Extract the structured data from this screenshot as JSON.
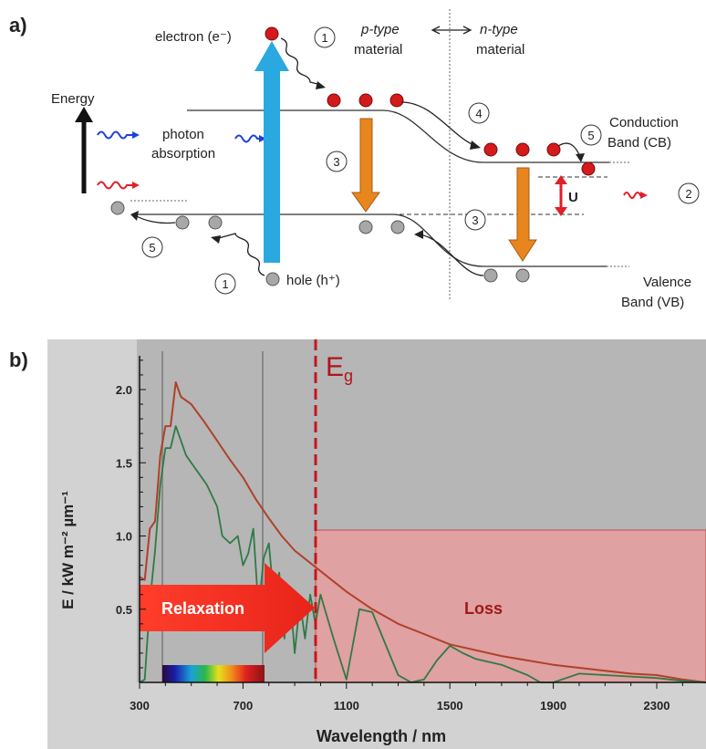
{
  "panel_a": {
    "label": "a)",
    "energy": "Energy",
    "electron": "electron (e⁻)",
    "p_type": "p-type",
    "p_material": "material",
    "n_type": "n-type",
    "n_material": "material",
    "photon": "photon",
    "absorption": "absorption",
    "conduction": "Conduction",
    "conduction2": "Band (CB)",
    "valence": "Valence",
    "valence2": "Band (VB)",
    "hole": "hole (h⁺)",
    "u": "U",
    "n1": "1",
    "n2": "2",
    "n3": "3",
    "n4": "4",
    "n5": "5",
    "colors": {
      "electron": "#d41a1a",
      "hole": "#a8a8a8",
      "blue_arrow": "#2aa8e0",
      "orange_arrow": "#e8861e",
      "red_arrow": "#e0202a"
    }
  },
  "panel_b": {
    "label": "b)",
    "eg": "E",
    "eg_sub": "g",
    "relaxation": "Relaxation",
    "loss": "Loss",
    "ylabel": "E / kW m⁻² µm⁻¹",
    "xlabel": "Wavelength  / nm"
  },
  "chart_data": {
    "type": "line",
    "xlabel": "Wavelength  / nm",
    "ylabel": "E / kW m⁻² µm⁻¹",
    "xlim": [
      300,
      2500
    ],
    "ylim": [
      0,
      2.2
    ],
    "x_ticks": [
      "300",
      "700",
      "1100",
      "1500",
      "1900",
      "2300"
    ],
    "y_ticks": [
      "0.5",
      "1.0",
      "1.5",
      "2.0"
    ],
    "bandgap_nm": 1000,
    "series": [
      {
        "color": "#b0402a",
        "x": [
          300,
          320,
          340,
          360,
          380,
          400,
          420,
          440,
          460,
          500,
          550,
          600,
          650,
          700,
          750,
          800,
          850,
          900,
          950,
          1000,
          1100,
          1200,
          1300,
          1400,
          1500,
          1600,
          1700,
          1800,
          1900,
          2000,
          2100,
          2200,
          2300,
          2400,
          2500
        ],
        "y": [
          0.72,
          0.7,
          1.05,
          1.1,
          1.55,
          1.75,
          1.75,
          2.05,
          1.95,
          1.9,
          1.78,
          1.65,
          1.52,
          1.4,
          1.25,
          1.12,
          1.0,
          0.9,
          0.83,
          0.76,
          0.62,
          0.5,
          0.4,
          0.33,
          0.26,
          0.22,
          0.18,
          0.15,
          0.12,
          0.1,
          0.08,
          0.06,
          0.05,
          0.02,
          0.0
        ]
      },
      {
        "color": "#2f7a45",
        "x": [
          300,
          320,
          340,
          360,
          380,
          400,
          420,
          440,
          460,
          480,
          520,
          560,
          600,
          620,
          650,
          680,
          700,
          720,
          740,
          760,
          780,
          800,
          820,
          840,
          860,
          880,
          900,
          920,
          940,
          960,
          980,
          1000,
          1050,
          1100,
          1150,
          1200,
          1300,
          1350,
          1400,
          1450,
          1500,
          1550,
          1600,
          1700,
          1800,
          1850,
          1900,
          1950,
          2000,
          2100,
          2200,
          2300,
          2400,
          2500
        ],
        "y": [
          0.0,
          0.02,
          0.55,
          0.9,
          1.35,
          1.6,
          1.6,
          1.75,
          1.65,
          1.55,
          1.45,
          1.35,
          1.2,
          1.0,
          0.95,
          1.0,
          0.8,
          0.88,
          1.05,
          0.5,
          0.85,
          0.95,
          0.55,
          0.75,
          0.3,
          0.65,
          0.2,
          0.55,
          0.3,
          0.6,
          0.4,
          0.6,
          0.3,
          0.02,
          0.5,
          0.48,
          0.05,
          0.0,
          0.02,
          0.15,
          0.25,
          0.2,
          0.16,
          0.12,
          0.05,
          0.0,
          0.0,
          0.03,
          0.06,
          0.05,
          0.04,
          0.03,
          0.01,
          0.0
        ]
      }
    ]
  }
}
